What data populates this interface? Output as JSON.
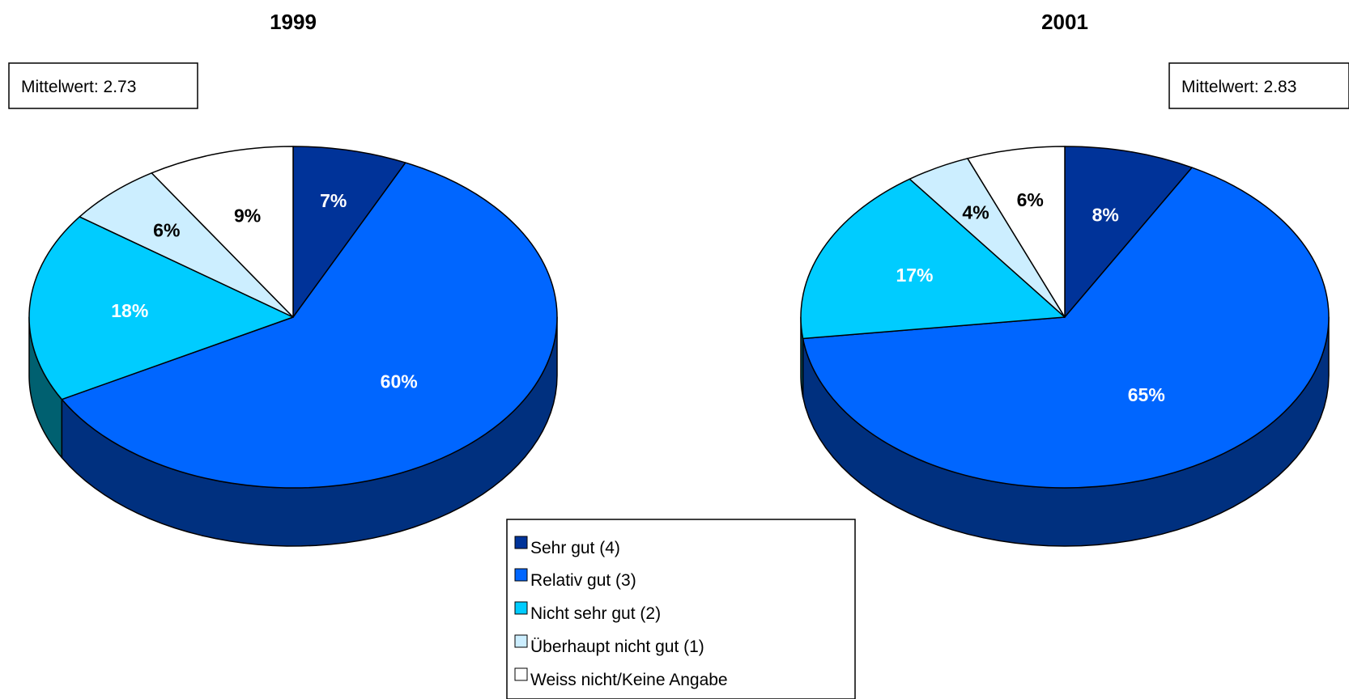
{
  "chart_data": [
    {
      "type": "pie",
      "title": "1999",
      "mean_label": "Mittelwert: 2.73",
      "categories": [
        "Sehr gut (4)",
        "Relativ gut (3)",
        "Nicht sehr gut (2)",
        "Überhaupt nicht gut (1)",
        "Weiss nicht/Keine Angabe"
      ],
      "values": [
        7,
        60,
        18,
        6,
        9
      ],
      "labels": [
        "7%",
        "60%",
        "18%",
        "6%",
        "9%"
      ]
    },
    {
      "type": "pie",
      "title": "2001",
      "mean_label": "Mittelwert: 2.83",
      "categories": [
        "Sehr gut (4)",
        "Relativ gut (3)",
        "Nicht sehr gut (2)",
        "Überhaupt nicht gut (1)",
        "Weiss nicht/Keine Angabe"
      ],
      "values": [
        8,
        65,
        17,
        4,
        6
      ],
      "labels": [
        "8%",
        "65%",
        "17%",
        "4%",
        "6%"
      ]
    }
  ],
  "legend": {
    "placement": "bottom-center",
    "items": [
      {
        "label": "Sehr gut (4)",
        "color": "#003399"
      },
      {
        "label": "Relativ gut (3)",
        "color": "#0066ff"
      },
      {
        "label": "Nicht sehr gut (2)",
        "color": "#00ccff"
      },
      {
        "label": "Überhaupt nicht gut (1)",
        "color": "#cceeff"
      },
      {
        "label": "Weiss nicht/Keine Angabe",
        "color": "#ffffff"
      }
    ]
  },
  "colors": {
    "side": [
      "#00257a",
      "#00307f",
      "#006070",
      "#8fb0c0",
      "#bfbfbf"
    ],
    "label_text": [
      "#ffffff",
      "#ffffff",
      "#ffffff",
      "#000000",
      "#000000"
    ]
  }
}
